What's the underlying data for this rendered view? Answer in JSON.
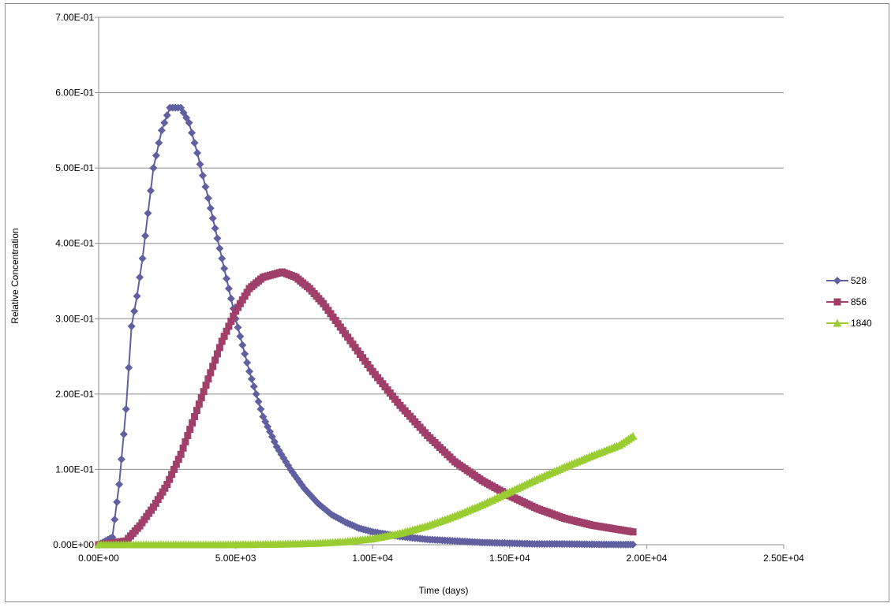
{
  "chart_data": {
    "type": "line",
    "title": "",
    "xlabel": "Time (days)",
    "ylabel": "Relative Concentration",
    "xlim": [
      0,
      25000
    ],
    "ylim": [
      0,
      0.7
    ],
    "x_ticks": [
      "0.00E+00",
      "5.00E+03",
      "1.00E+04",
      "1.50E+04",
      "2.00E+04",
      "2.50E+04"
    ],
    "x_tick_values": [
      0,
      5000,
      10000,
      15000,
      20000,
      25000
    ],
    "y_ticks": [
      "0.00E+00",
      "1.00E-01",
      "2.00E-01",
      "3.00E-01",
      "4.00E-01",
      "5.00E-01",
      "6.00E-01",
      "7.00E-01"
    ],
    "y_tick_values": [
      0,
      0.1,
      0.2,
      0.3,
      0.4,
      0.5,
      0.6,
      0.7
    ],
    "grid": "horizontal",
    "legend_position": "right",
    "series": [
      {
        "name": "528",
        "color": "#6060a0",
        "marker": "diamond",
        "x": [
          0,
          500,
          750,
          1000,
          1200,
          1400,
          1600,
          1800,
          2000,
          2300,
          2600,
          3000,
          3300,
          3600,
          4000,
          4500,
          5000,
          5500,
          6000,
          6500,
          7000,
          7500,
          8000,
          8500,
          9000,
          9500,
          10000,
          11000,
          12000,
          13000,
          14000,
          15000,
          16000,
          17000,
          18000,
          19500
        ],
        "y": [
          0,
          0.01,
          0.08,
          0.18,
          0.29,
          0.33,
          0.38,
          0.44,
          0.5,
          0.55,
          0.58,
          0.58,
          0.56,
          0.52,
          0.46,
          0.38,
          0.3,
          0.23,
          0.17,
          0.13,
          0.1,
          0.075,
          0.055,
          0.04,
          0.03,
          0.022,
          0.017,
          0.011,
          0.007,
          0.005,
          0.003,
          0.002,
          0.001,
          0.001,
          0.0005,
          0.0002
        ]
      },
      {
        "name": "856",
        "color": "#a0406a",
        "marker": "square",
        "x": [
          0,
          1000,
          1500,
          2000,
          2500,
          3000,
          3500,
          4000,
          4500,
          5000,
          5500,
          6000,
          6700,
          7200,
          7700,
          8200,
          9000,
          10000,
          11000,
          12000,
          13000,
          14000,
          15000,
          16000,
          17000,
          18000,
          19500
        ],
        "y": [
          0,
          0.005,
          0.025,
          0.05,
          0.08,
          0.12,
          0.17,
          0.22,
          0.27,
          0.31,
          0.34,
          0.355,
          0.362,
          0.355,
          0.34,
          0.32,
          0.28,
          0.23,
          0.185,
          0.145,
          0.11,
          0.085,
          0.065,
          0.048,
          0.035,
          0.026,
          0.017
        ]
      },
      {
        "name": "1840",
        "color": "#9acd32",
        "marker": "triangle",
        "x": [
          0,
          2000,
          4000,
          6000,
          7000,
          8000,
          9000,
          10000,
          11000,
          12000,
          13000,
          14000,
          15000,
          16000,
          17000,
          18000,
          19000,
          19500
        ],
        "y": [
          0,
          0,
          0,
          0.0005,
          0.001,
          0.002,
          0.004,
          0.008,
          0.015,
          0.025,
          0.038,
          0.053,
          0.07,
          0.087,
          0.103,
          0.118,
          0.132,
          0.144
        ]
      }
    ]
  }
}
